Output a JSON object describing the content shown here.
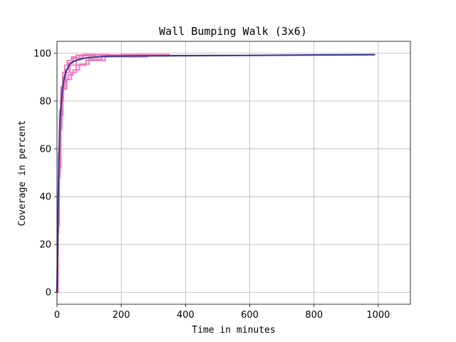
{
  "chart_data": {
    "type": "line",
    "title": "Wall Bumping Walk (3x6)",
    "xlabel": "Time in minutes",
    "ylabel": "Coverage in percent",
    "xlim": [
      0,
      1100
    ],
    "ylim": [
      -5,
      105
    ],
    "xticks": [
      0,
      200,
      400,
      600,
      800,
      1000
    ],
    "yticks": [
      0,
      20,
      40,
      60,
      80,
      100
    ],
    "grid": true,
    "colors": {
      "runs": "#f06fb8",
      "mean": "#3d3a8c"
    },
    "series": [
      {
        "role": "runs",
        "runs": [
          {
            "x": [
              0,
              3,
              6,
              10,
              15,
              20,
              28,
              40,
              60,
              80,
              120,
              200,
              350
            ],
            "y": [
              0,
              35,
              55,
              72,
              83,
              88,
              92,
              95,
              98,
              99,
              99.3,
              99.5,
              99.6
            ]
          },
          {
            "x": [
              0,
              3,
              6,
              10,
              15,
              20,
              30,
              45,
              60,
              90,
              150,
              280
            ],
            "y": [
              0,
              30,
              50,
              68,
              80,
              85,
              89,
              92,
              95,
              97,
              98.5,
              99.2
            ]
          },
          {
            "x": [
              0,
              2,
              5,
              9,
              14,
              20,
              25,
              35,
              50,
              70,
              100,
              160
            ],
            "y": [
              0,
              25,
              48,
              70,
              84,
              90,
              93,
              96,
              98,
              99,
              99.4,
              99.6
            ]
          },
          {
            "x": [
              0,
              3,
              7,
              12,
              18,
              25,
              35,
              50,
              70,
              100,
              140,
              200
            ],
            "y": [
              0,
              28,
              52,
              74,
              85,
              89,
              91,
              93,
              95.5,
              97.5,
              98.8,
              99.4
            ]
          },
          {
            "x": [
              0,
              2,
              5,
              8,
              12,
              18,
              24,
              32,
              45,
              60,
              80,
              120
            ],
            "y": [
              0,
              32,
              58,
              76,
              86,
              92,
              95,
              97,
              98.5,
              99.2,
              99.5,
              99.6
            ]
          }
        ]
      },
      {
        "role": "mean",
        "x": [
          0,
          2,
          4,
          6,
          8,
          10,
          13,
          16,
          20,
          25,
          30,
          40,
          50,
          60,
          80,
          100,
          130,
          160,
          250,
          400,
          600,
          800,
          990
        ],
        "y": [
          0,
          18,
          40,
          55,
          66,
          73,
          79,
          84,
          88,
          91,
          93,
          95.5,
          96.5,
          97,
          97.8,
          98.2,
          98.5,
          98.8,
          98.9,
          99.0,
          99.1,
          99.3,
          99.4
        ]
      }
    ]
  }
}
